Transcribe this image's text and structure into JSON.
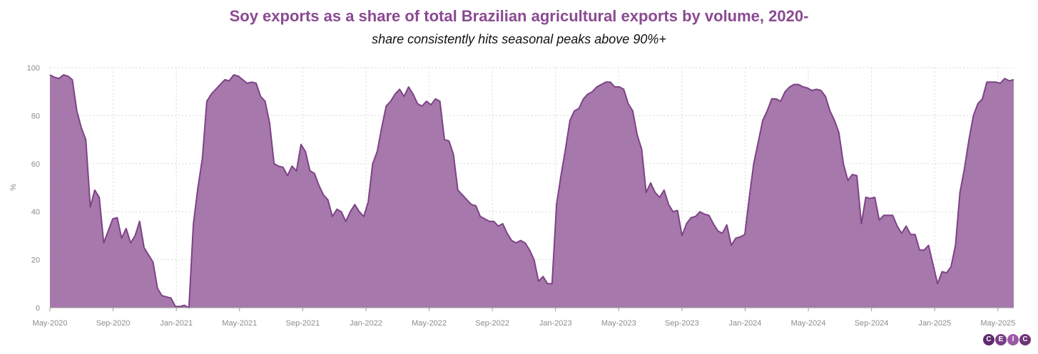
{
  "chart_data": {
    "type": "area",
    "title": "Soy exports as a share of total Brazilian agricultural exports by volume, 2020-",
    "subtitle": "share consistently hits seasonal peaks above 90%+",
    "ylabel": "%",
    "xlabel": "",
    "ylim": [
      0,
      100
    ],
    "yticks": [
      0,
      20,
      40,
      60,
      80,
      100
    ],
    "grid": true,
    "x_ticks": [
      "May-2020",
      "Sep-2020",
      "Jan-2021",
      "May-2021",
      "Sep-2021",
      "Jan-2022",
      "May-2022",
      "Sep-2022",
      "Jan-2023",
      "May-2023",
      "Sep-2023",
      "Jan-2024",
      "May-2024",
      "Sep-2024",
      "Jan-2025",
      "May-2025"
    ],
    "colors": {
      "fill": "#a678ab",
      "line": "#7d4486",
      "title": "#8a4a92"
    },
    "series": [
      {
        "values": [
          97,
          96,
          95.5,
          97,
          96.5,
          95,
          82,
          75,
          70,
          42,
          49,
          46,
          27,
          32,
          37,
          37.5,
          29,
          33,
          27,
          30,
          36,
          25,
          22,
          19,
          8,
          5,
          4.5,
          4,
          0.5,
          0.5,
          1,
          0,
          35,
          50,
          62,
          86,
          89,
          91,
          93,
          95,
          94.5,
          97,
          96.5,
          95,
          93.5,
          94,
          93.5,
          88,
          86,
          77,
          60,
          59,
          58.5,
          55,
          59,
          57,
          68,
          65,
          57,
          56,
          51,
          47,
          45,
          38,
          41,
          40,
          36,
          40,
          43,
          40,
          38,
          44,
          60,
          65,
          75,
          84,
          86,
          89,
          91,
          88,
          92,
          89,
          85,
          84,
          86,
          84.5,
          87,
          86,
          70,
          69.5,
          64,
          49,
          47,
          45,
          43,
          42.5,
          38,
          37,
          36,
          36,
          34,
          35,
          31,
          28,
          27,
          28,
          27,
          24,
          20,
          11,
          13,
          10,
          10,
          43,
          55,
          66,
          78,
          82,
          83,
          87,
          89,
          90,
          92,
          93,
          94,
          94,
          92,
          92,
          91,
          85,
          82,
          72,
          66,
          48,
          52,
          48,
          46,
          49,
          43,
          40,
          40.5,
          30,
          35,
          37.5,
          38,
          40,
          39,
          38.5,
          35,
          32,
          31,
          34.5,
          26,
          29,
          29.5,
          30.5,
          46,
          60,
          69,
          78,
          82,
          87,
          87,
          86,
          90,
          92,
          93,
          93,
          92,
          91.5,
          90.5,
          91,
          90.5,
          88,
          82,
          78,
          73,
          60,
          53,
          55.5,
          55,
          35,
          46,
          45.5,
          46,
          36.5,
          38.5,
          38.5,
          38.5,
          34,
          31,
          34,
          30.5,
          30.5,
          24,
          24,
          26,
          18,
          10,
          15,
          14.5,
          17,
          26,
          48,
          58,
          70,
          80,
          85,
          87,
          94,
          94,
          94,
          93.5,
          95.5,
          94.5,
          95
        ]
      }
    ]
  },
  "brand": {
    "letters": [
      "C",
      "E",
      "I",
      "C"
    ],
    "colors": [
      "#5d2a6a",
      "#7b3d87",
      "#9b5aa6",
      "#6c3479"
    ]
  }
}
